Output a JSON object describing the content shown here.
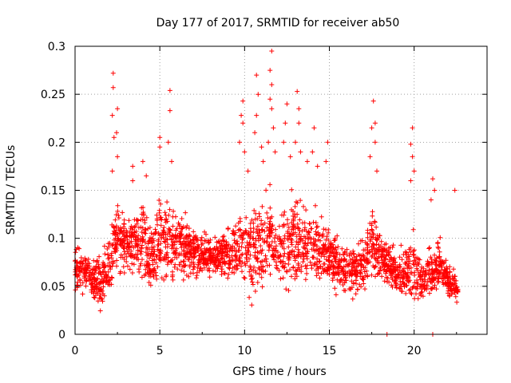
{
  "chart_data": {
    "type": "scatter",
    "title": "Day 177 of 2017, SRMTID for receiver ab50",
    "xlabel": "GPS time / hours",
    "ylabel": "SRMTID / TECUs",
    "xlim": [
      0,
      24.3
    ],
    "ylim": [
      0,
      0.3
    ],
    "xticks": [
      0,
      5,
      10,
      15,
      20
    ],
    "xtick_labels": [
      "0",
      "5",
      "10",
      "15",
      "20"
    ],
    "yticks": [
      0,
      0.05,
      0.1,
      0.15,
      0.2,
      0.25,
      0.3
    ],
    "ytick_labels": [
      "0",
      "0.05",
      "0.1",
      "0.15",
      "0.2",
      "0.25",
      "0.3"
    ],
    "grid": true,
    "marker": "+",
    "color": "#ff0000",
    "series": [
      {
        "name": "SRMTID",
        "envelope": [
          {
            "x": 0.0,
            "lo": 0.035,
            "hi": 0.105
          },
          {
            "x": 0.5,
            "lo": 0.04,
            "hi": 0.09
          },
          {
            "x": 1.0,
            "lo": 0.03,
            "hi": 0.085
          },
          {
            "x": 1.4,
            "lo": 0.015,
            "hi": 0.095
          },
          {
            "x": 2.0,
            "lo": 0.03,
            "hi": 0.11
          },
          {
            "x": 2.5,
            "lo": 0.05,
            "hi": 0.155
          },
          {
            "x": 3.0,
            "lo": 0.05,
            "hi": 0.13
          },
          {
            "x": 3.5,
            "lo": 0.05,
            "hi": 0.14
          },
          {
            "x": 4.0,
            "lo": 0.04,
            "hi": 0.15
          },
          {
            "x": 4.5,
            "lo": 0.03,
            "hi": 0.13
          },
          {
            "x": 5.0,
            "lo": 0.045,
            "hi": 0.16
          },
          {
            "x": 5.5,
            "lo": 0.04,
            "hi": 0.15
          },
          {
            "x": 6.0,
            "lo": 0.05,
            "hi": 0.14
          },
          {
            "x": 7.0,
            "lo": 0.05,
            "hi": 0.12
          },
          {
            "x": 8.0,
            "lo": 0.05,
            "hi": 0.11
          },
          {
            "x": 9.0,
            "lo": 0.05,
            "hi": 0.12
          },
          {
            "x": 9.5,
            "lo": 0.045,
            "hi": 0.13
          },
          {
            "x": 10.0,
            "lo": 0.03,
            "hi": 0.16
          },
          {
            "x": 10.5,
            "lo": 0.02,
            "hi": 0.15
          },
          {
            "x": 11.0,
            "lo": 0.04,
            "hi": 0.15
          },
          {
            "x": 11.5,
            "lo": 0.04,
            "hi": 0.17
          },
          {
            "x": 12.0,
            "lo": 0.04,
            "hi": 0.14
          },
          {
            "x": 12.5,
            "lo": 0.03,
            "hi": 0.15
          },
          {
            "x": 13.0,
            "lo": 0.04,
            "hi": 0.16
          },
          {
            "x": 13.5,
            "lo": 0.05,
            "hi": 0.14
          },
          {
            "x": 14.0,
            "lo": 0.04,
            "hi": 0.15
          },
          {
            "x": 15.0,
            "lo": 0.04,
            "hi": 0.12
          },
          {
            "x": 16.0,
            "lo": 0.035,
            "hi": 0.1
          },
          {
            "x": 17.0,
            "lo": 0.03,
            "hi": 0.11
          },
          {
            "x": 17.5,
            "lo": 0.05,
            "hi": 0.14
          },
          {
            "x": 18.0,
            "lo": 0.045,
            "hi": 0.12
          },
          {
            "x": 19.0,
            "lo": 0.03,
            "hi": 0.09
          },
          {
            "x": 19.5,
            "lo": 0.03,
            "hi": 0.1
          },
          {
            "x": 20.0,
            "lo": 0.012,
            "hi": 0.12
          },
          {
            "x": 20.5,
            "lo": 0.03,
            "hi": 0.08
          },
          {
            "x": 21.0,
            "lo": 0.02,
            "hi": 0.1
          },
          {
            "x": 21.5,
            "lo": 0.04,
            "hi": 0.11
          },
          {
            "x": 22.0,
            "lo": 0.03,
            "hi": 0.08
          },
          {
            "x": 22.6,
            "lo": 0.03,
            "hi": 0.065
          }
        ],
        "spikes": [
          {
            "x": 2.25,
            "y": 0.272
          },
          {
            "x": 2.25,
            "y": 0.257
          },
          {
            "x": 2.2,
            "y": 0.228
          },
          {
            "x": 2.5,
            "y": 0.235
          },
          {
            "x": 2.45,
            "y": 0.21
          },
          {
            "x": 2.3,
            "y": 0.205
          },
          {
            "x": 2.5,
            "y": 0.185
          },
          {
            "x": 2.2,
            "y": 0.17
          },
          {
            "x": 3.4,
            "y": 0.16
          },
          {
            "x": 3.4,
            "y": 0.175
          },
          {
            "x": 4.0,
            "y": 0.18
          },
          {
            "x": 4.2,
            "y": 0.165
          },
          {
            "x": 5.0,
            "y": 0.205
          },
          {
            "x": 5.0,
            "y": 0.195
          },
          {
            "x": 5.6,
            "y": 0.254
          },
          {
            "x": 5.6,
            "y": 0.233
          },
          {
            "x": 5.5,
            "y": 0.2
          },
          {
            "x": 5.7,
            "y": 0.18
          },
          {
            "x": 9.9,
            "y": 0.243
          },
          {
            "x": 9.8,
            "y": 0.228
          },
          {
            "x": 9.9,
            "y": 0.22
          },
          {
            "x": 9.7,
            "y": 0.2
          },
          {
            "x": 10.0,
            "y": 0.19
          },
          {
            "x": 10.2,
            "y": 0.17
          },
          {
            "x": 10.7,
            "y": 0.27
          },
          {
            "x": 10.8,
            "y": 0.25
          },
          {
            "x": 10.7,
            "y": 0.228
          },
          {
            "x": 10.6,
            "y": 0.21
          },
          {
            "x": 11.0,
            "y": 0.195
          },
          {
            "x": 11.1,
            "y": 0.18
          },
          {
            "x": 11.6,
            "y": 0.295
          },
          {
            "x": 11.5,
            "y": 0.275
          },
          {
            "x": 11.6,
            "y": 0.26
          },
          {
            "x": 11.5,
            "y": 0.245
          },
          {
            "x": 11.6,
            "y": 0.235
          },
          {
            "x": 11.7,
            "y": 0.215
          },
          {
            "x": 11.4,
            "y": 0.2
          },
          {
            "x": 11.8,
            "y": 0.19
          },
          {
            "x": 12.5,
            "y": 0.24
          },
          {
            "x": 12.4,
            "y": 0.22
          },
          {
            "x": 12.3,
            "y": 0.2
          },
          {
            "x": 12.7,
            "y": 0.185
          },
          {
            "x": 13.1,
            "y": 0.253
          },
          {
            "x": 13.2,
            "y": 0.235
          },
          {
            "x": 13.2,
            "y": 0.22
          },
          {
            "x": 13.0,
            "y": 0.2
          },
          {
            "x": 13.3,
            "y": 0.19
          },
          {
            "x": 13.7,
            "y": 0.18
          },
          {
            "x": 14.1,
            "y": 0.215
          },
          {
            "x": 14.0,
            "y": 0.19
          },
          {
            "x": 14.3,
            "y": 0.175
          },
          {
            "x": 14.9,
            "y": 0.2
          },
          {
            "x": 14.8,
            "y": 0.18
          },
          {
            "x": 17.6,
            "y": 0.243
          },
          {
            "x": 17.7,
            "y": 0.22
          },
          {
            "x": 17.5,
            "y": 0.215
          },
          {
            "x": 17.7,
            "y": 0.2
          },
          {
            "x": 17.4,
            "y": 0.185
          },
          {
            "x": 17.8,
            "y": 0.17
          },
          {
            "x": 19.9,
            "y": 0.215
          },
          {
            "x": 19.8,
            "y": 0.198
          },
          {
            "x": 19.9,
            "y": 0.185
          },
          {
            "x": 20.0,
            "y": 0.17
          },
          {
            "x": 19.8,
            "y": 0.16
          },
          {
            "x": 21.1,
            "y": 0.162
          },
          {
            "x": 21.2,
            "y": 0.15
          },
          {
            "x": 21.0,
            "y": 0.14
          },
          {
            "x": 22.4,
            "y": 0.15
          }
        ],
        "zero_points": [
          {
            "x": 18.4,
            "y": 0.0
          },
          {
            "x": 21.1,
            "y": 0.0
          }
        ],
        "approx_point_count": 2400
      }
    ]
  }
}
